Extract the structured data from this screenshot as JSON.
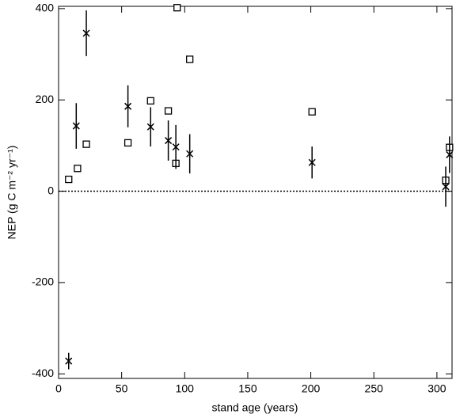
{
  "chart_data": {
    "type": "scatter",
    "xlabel": "stand age (years)",
    "ylabel": "NEP (g C m⁻² yr⁻¹)",
    "xlim": [
      0,
      312
    ],
    "xticks": [
      0,
      50,
      100,
      150,
      200,
      250,
      300
    ],
    "ylim": [
      -410,
      405
    ],
    "yticks": [
      -400,
      -200,
      0,
      200,
      400
    ],
    "reference_line": 0,
    "series": [
      {
        "marker": "square",
        "color": "#000000",
        "x": [
          8,
          15,
          22,
          55,
          73,
          87,
          93,
          94,
          104,
          201,
          307,
          310
        ],
        "values": [
          26,
          50,
          103,
          106,
          198,
          176,
          61,
          402,
          289,
          174,
          24,
          96
        ]
      },
      {
        "marker": "cross",
        "color": "#000000",
        "x": [
          8,
          14,
          22,
          55,
          73,
          87,
          93,
          104,
          201,
          307,
          310
        ],
        "values": [
          -372,
          143,
          346,
          186,
          141,
          111,
          97,
          82,
          63,
          10,
          80
        ],
        "errors": [
          18,
          50,
          50,
          46,
          43,
          44,
          48,
          43,
          35,
          44,
          40
        ]
      }
    ]
  }
}
